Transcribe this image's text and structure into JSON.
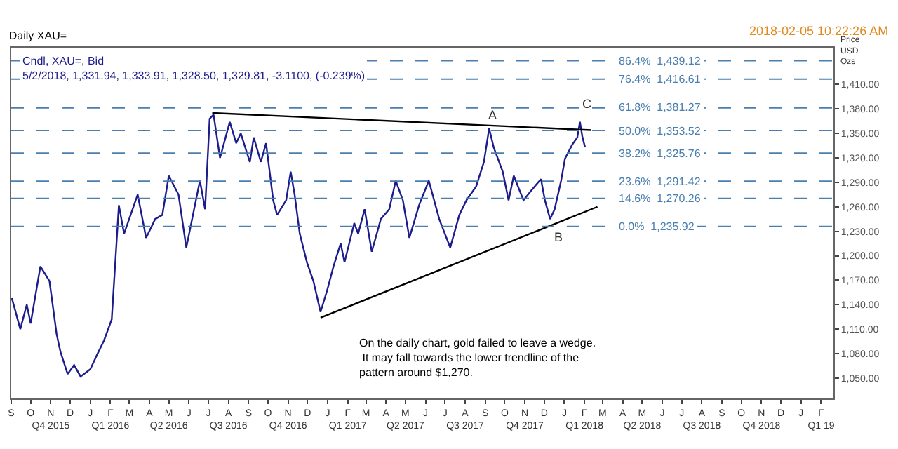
{
  "chart_data": {
    "type": "line",
    "title": "Daily XAU=",
    "subtitle": "Cndl, XAU=, Bid\n5/2/2018, 1,331.94, 1,333.91, 1,328.50, 1,329.81, -3.1100, (-0.239%)",
    "ylabel": "Price\nUSD\nOzs",
    "annotations": [
      "2018-02-05 10:22:26 AM",
      "A",
      "B",
      "C",
      "On the daily chart, gold failed to leave a wedge.\n It may fall towards the lower trendline of the\npattern around $1,270."
    ],
    "series": [
      {
        "color": "#1c1c8c",
        "x": [
          "2015-09-02",
          "2015-09-15",
          "2015-09-25",
          "2015-10-01",
          "2015-10-16",
          "2015-10-30",
          "2015-11-10",
          "2015-11-16",
          "2015-11-27",
          "2015-12-07",
          "2015-12-17",
          "2016-01-01",
          "2016-01-11",
          "2016-01-22",
          "2016-02-03",
          "2016-02-14",
          "2016-02-22",
          "2016-03-14",
          "2016-03-27",
          "2016-04-10",
          "2016-04-21",
          "2016-05-01",
          "2016-05-16",
          "2016-05-28",
          "2016-06-18",
          "2016-06-26",
          "2016-07-03",
          "2016-07-09",
          "2016-07-19",
          "2016-08-03",
          "2016-08-13",
          "2016-08-20",
          "2016-09-03",
          "2016-09-09",
          "2016-09-20",
          "2016-09-28",
          "2016-10-09",
          "2016-10-15",
          "2016-10-29",
          "2016-11-05",
          "2016-11-11",
          "2016-11-19",
          "2016-11-30",
          "2016-12-10",
          "2016-12-21",
          "2016-12-31",
          "2017-01-10",
          "2017-01-21",
          "2017-01-27",
          "2017-02-11",
          "2017-02-17",
          "2017-02-27",
          "2017-03-10",
          "2017-03-24",
          "2017-04-06",
          "2017-04-16",
          "2017-04-27",
          "2017-05-07",
          "2017-05-22",
          "2017-06-06",
          "2017-06-22",
          "2017-07-09",
          "2017-07-23",
          "2017-08-03",
          "2017-08-18",
          "2017-08-30",
          "2017-09-07",
          "2017-09-14",
          "2017-09-28",
          "2017-10-07",
          "2017-10-15",
          "2017-10-30",
          "2017-11-11",
          "2017-11-26",
          "2017-12-02",
          "2017-12-10",
          "2017-12-17",
          "2017-12-27",
          "2018-01-02",
          "2018-01-13",
          "2018-01-21",
          "2018-01-25",
          "2018-01-29",
          "2018-02-02"
        ],
        "values": [
          1148,
          1110,
          1140,
          1117,
          1187,
          1169,
          1104,
          1082,
          1055,
          1066,
          1052,
          1061,
          1078,
          1096,
          1122,
          1262,
          1227,
          1275,
          1222,
          1245,
          1250,
          1298,
          1275,
          1210,
          1292,
          1257,
          1368,
          1373,
          1320,
          1364,
          1338,
          1350,
          1315,
          1345,
          1315,
          1338,
          1268,
          1250,
          1268,
          1303,
          1275,
          1227,
          1192,
          1169,
          1131,
          1157,
          1187,
          1215,
          1192,
          1240,
          1227,
          1257,
          1205,
          1245,
          1257,
          1292,
          1268,
          1222,
          1262,
          1292,
          1245,
          1210,
          1250,
          1268,
          1285,
          1315,
          1356,
          1333,
          1303,
          1268,
          1298,
          1268,
          1280,
          1294,
          1268,
          1245,
          1257,
          1292,
          1319,
          1336,
          1345,
          1364,
          1345,
          1333
        ]
      },
      {
        "color": "#000000",
        "x": [
          "2016-07-07",
          "2018-02-11"
        ],
        "values": [
          1375,
          1354
        ]
      },
      {
        "color": "#000000",
        "x": [
          "2016-12-21",
          "2018-02-21"
        ],
        "values": [
          1124,
          1260
        ]
      }
    ],
    "ref_lines": [
      {
        "axis": "y",
        "value": 1439.12,
        "label": "86.4%  1,439.12",
        "color": "#4a7fb0",
        "line_style": "dashed"
      },
      {
        "axis": "y",
        "value": 1416.61,
        "label": "76.4%  1,416.61",
        "color": "#4a7fb0",
        "line_style": "dashed"
      },
      {
        "axis": "y",
        "value": 1381.27,
        "label": "61.8%  1,381.27",
        "color": "#4a7fb0",
        "line_style": "dashed"
      },
      {
        "axis": "y",
        "value": 1353.52,
        "label": "50.0%  1,353.52",
        "color": "#4a7fb0",
        "line_style": "dashed"
      },
      {
        "axis": "y",
        "value": 1325.76,
        "label": "38.2%  1,325.76",
        "color": "#4a7fb0",
        "line_style": "dashed"
      },
      {
        "axis": "y",
        "value": 1291.42,
        "label": "23.6%  1,291.42",
        "color": "#4a7fb0",
        "line_style": "dashed"
      },
      {
        "axis": "y",
        "value": 1270.26,
        "label": "14.6%  1,270.26",
        "color": "#4a7fb0",
        "line_style": "dashed"
      },
      {
        "axis": "y",
        "value": 1235.92,
        "label": "0.0%  1,235.92",
        "color": "#4a7fb0",
        "line_style": "dashed"
      }
    ],
    "xlim": [
      "2015-09-01",
      "2019-02-20"
    ],
    "xticks": [
      {
        "value": "2015-09-01",
        "label": "S"
      },
      {
        "value": "2015-10-01",
        "label": "O"
      },
      {
        "value": "2015-11-01",
        "label": "N\nQ4 2015"
      },
      {
        "value": "2015-12-01",
        "label": "D"
      },
      {
        "value": "2016-01-01",
        "label": "J"
      },
      {
        "value": "2016-02-01",
        "label": "F\nQ1 2016"
      },
      {
        "value": "2016-03-01",
        "label": "M"
      },
      {
        "value": "2016-04-01",
        "label": "A"
      },
      {
        "value": "2016-05-01",
        "label": "M\nQ2 2016"
      },
      {
        "value": "2016-06-01",
        "label": "J"
      },
      {
        "value": "2016-07-01",
        "label": "J"
      },
      {
        "value": "2016-08-01",
        "label": "A\nQ3 2016"
      },
      {
        "value": "2016-09-01",
        "label": "S"
      },
      {
        "value": "2016-10-01",
        "label": "O"
      },
      {
        "value": "2016-11-01",
        "label": "N\nQ4 2016"
      },
      {
        "value": "2016-12-01",
        "label": "D"
      },
      {
        "value": "2017-01-01",
        "label": "J"
      },
      {
        "value": "2017-02-01",
        "label": "F\nQ1 2017"
      },
      {
        "value": "2017-03-01",
        "label": "M"
      },
      {
        "value": "2017-04-01",
        "label": "A"
      },
      {
        "value": "2017-05-01",
        "label": "M\nQ2 2017"
      },
      {
        "value": "2017-06-01",
        "label": "J"
      },
      {
        "value": "2017-07-01",
        "label": "J"
      },
      {
        "value": "2017-08-01",
        "label": "A\nQ3 2017"
      },
      {
        "value": "2017-09-01",
        "label": "S"
      },
      {
        "value": "2017-10-01",
        "label": "O"
      },
      {
        "value": "2017-11-01",
        "label": "N\nQ4 2017"
      },
      {
        "value": "2017-12-01",
        "label": "D"
      },
      {
        "value": "2018-01-01",
        "label": "J"
      },
      {
        "value": "2018-02-01",
        "label": "F\nQ1 2018"
      },
      {
        "value": "2018-03-01",
        "label": "M"
      },
      {
        "value": "2018-04-01",
        "label": "A"
      },
      {
        "value": "2018-05-01",
        "label": "M\nQ2 2018"
      },
      {
        "value": "2018-06-01",
        "label": "J"
      },
      {
        "value": "2018-07-01",
        "label": "J"
      },
      {
        "value": "2018-08-01",
        "label": "A\nQ3 2018"
      },
      {
        "value": "2018-09-01",
        "label": "S"
      },
      {
        "value": "2018-10-01",
        "label": "O"
      },
      {
        "value": "2018-11-01",
        "label": "N\nQ4 2018"
      },
      {
        "value": "2018-12-01",
        "label": "D"
      },
      {
        "value": "2019-01-01",
        "label": "J"
      },
      {
        "value": "2019-02-01",
        "label": "F\nQ1 19"
      }
    ],
    "ylim": [
      1025,
      1455
    ],
    "yticks": [
      {
        "value": 1050,
        "label": "1,050.00"
      },
      {
        "value": 1080,
        "label": "1,080.00"
      },
      {
        "value": 1110,
        "label": "1,110.00"
      },
      {
        "value": 1140,
        "label": "1,140.00"
      },
      {
        "value": 1170,
        "label": "1,170.00"
      },
      {
        "value": 1200,
        "label": "1,200.00"
      },
      {
        "value": 1230,
        "label": "1,230.00"
      },
      {
        "value": 1260,
        "label": "1,260.00"
      },
      {
        "value": 1290,
        "label": "1,290.00"
      },
      {
        "value": 1320,
        "label": "1,320.00"
      },
      {
        "value": 1350,
        "label": "1,350.00"
      },
      {
        "value": 1380,
        "label": "1,380.00"
      },
      {
        "value": 1410,
        "label": "1,410.00"
      }
    ]
  }
}
